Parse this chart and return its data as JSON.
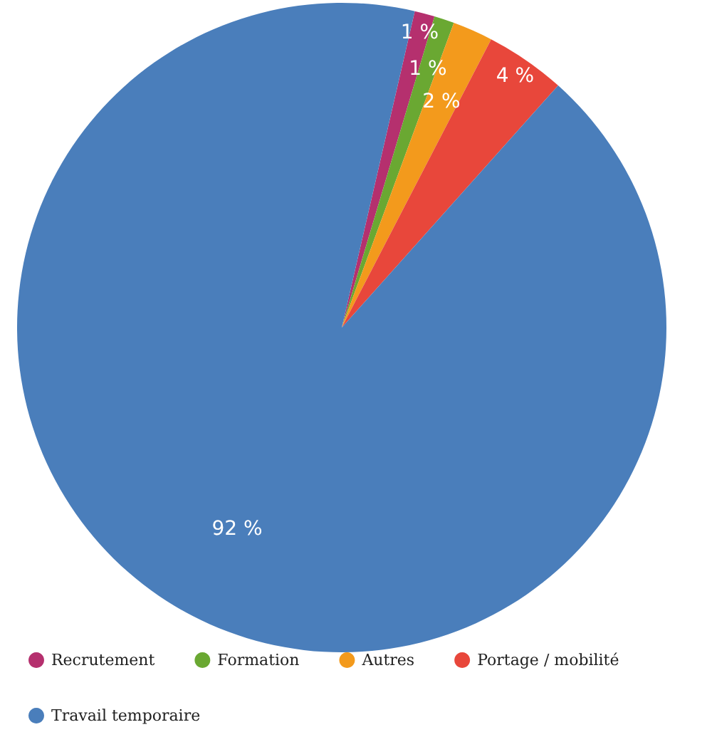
{
  "chart_data": {
    "type": "pie",
    "categories": [
      "Recrutement",
      "Formation",
      "Autres",
      "Portage / mobilité",
      "Travail temporaire"
    ],
    "values": [
      1,
      1,
      2,
      4,
      92
    ],
    "colors": [
      "#b5306e",
      "#6aa832",
      "#f39a1c",
      "#e8473b",
      "#4a7ebb"
    ],
    "value_labels": [
      "1 %",
      "1 %",
      "2 %",
      "4 %",
      "92 %"
    ],
    "legend": "bottom"
  }
}
